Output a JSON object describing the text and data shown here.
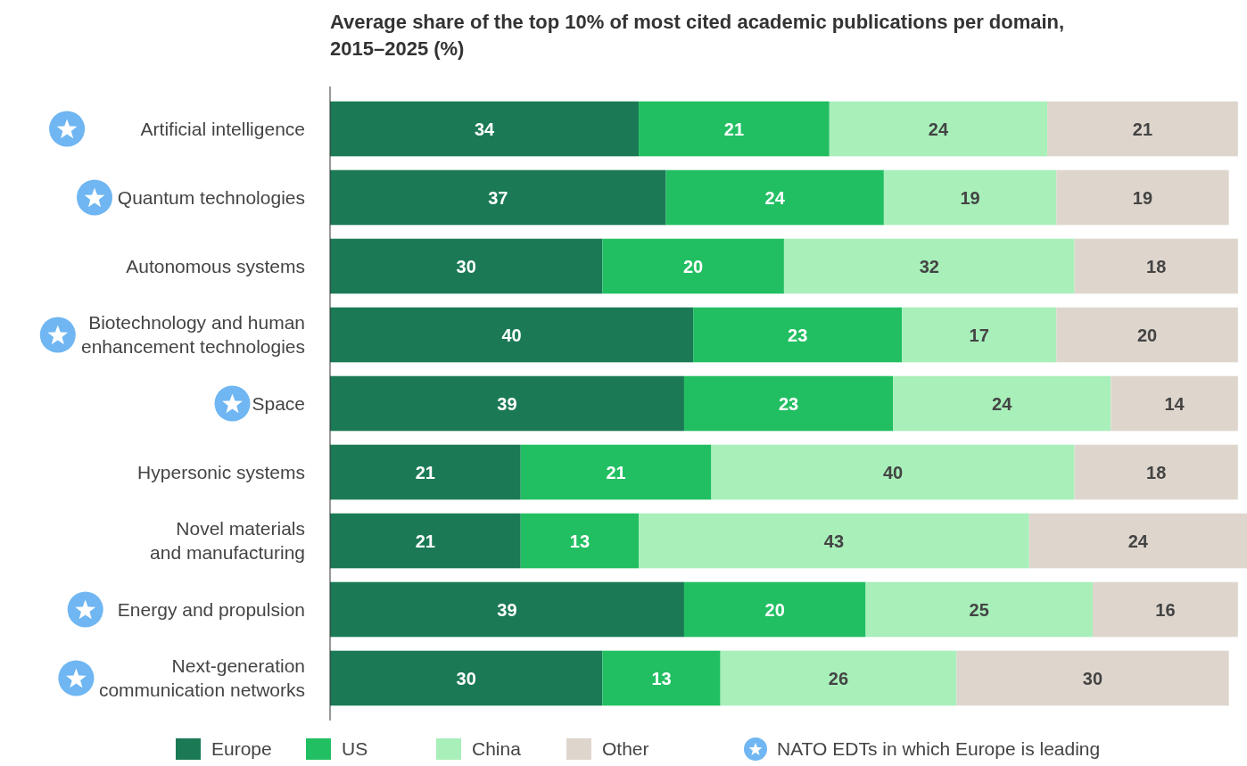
{
  "chart_data": {
    "type": "bar",
    "orientation": "horizontal",
    "stacked": true,
    "title": "Average share of the top 10% of most cited academic publications per domain,\n2015–2025 (%)",
    "categories": [
      "Artificial intelligence",
      "Quantum technologies",
      "Autonomous systems",
      "Biotechnology and human\nenhancement technologies",
      "Space",
      "Hypersonic systems",
      "Novel materials\nand manufacturing",
      "Energy and propulsion",
      "Next-generation\ncommunication networks"
    ],
    "series": [
      {
        "name": "Europe",
        "color": "#1b7a55",
        "values": [
          34,
          37,
          30,
          40,
          39,
          21,
          21,
          39,
          30
        ]
      },
      {
        "name": "US",
        "color": "#22bf62",
        "values": [
          21,
          24,
          20,
          23,
          23,
          21,
          13,
          20,
          13
        ]
      },
      {
        "name": "China",
        "color": "#a8efba",
        "values": [
          24,
          19,
          32,
          17,
          24,
          40,
          43,
          25,
          26
        ]
      },
      {
        "name": "Other",
        "color": "#ded6cd",
        "values": [
          21,
          19,
          18,
          20,
          14,
          18,
          24,
          16,
          30
        ]
      }
    ],
    "xlim": [
      0,
      101
    ],
    "tick_labels": "y",
    "data_labels": true,
    "legend": "bottom",
    "annotations": [
      "NATO EDTs in which Europe is leading"
    ]
  }
}
